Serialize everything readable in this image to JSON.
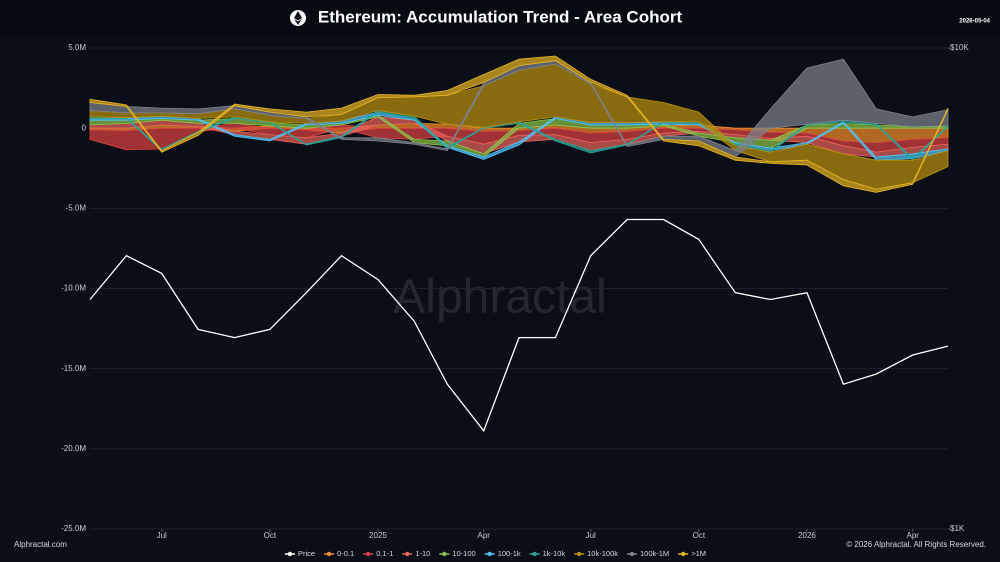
{
  "chart_data": {
    "type": "area",
    "title": "Ethereum: Accumulation Trend - Area Cohort",
    "date": "2026-05-04",
    "watermark": "Alphractal",
    "source": "Alphractal.com",
    "copyright": "© 2026 Alphractal. All Rights Reserved.",
    "x": [
      "2024-05",
      "2024-06",
      "2024-07",
      "2024-08",
      "2024-09",
      "2024-10",
      "2024-11",
      "2024-12",
      "2025-01",
      "2025-02",
      "2025-03",
      "2025-04",
      "2025-05",
      "2025-06",
      "2025-07",
      "2025-08",
      "2025-09",
      "2025-10",
      "2025-11",
      "2025-12",
      "2026-01",
      "2026-02",
      "2026-03",
      "2026-04",
      "2026-05"
    ],
    "xlim": [
      "2024-05",
      "2026-05"
    ],
    "xticks": [
      {
        "value": "2024-07",
        "label": "Jul"
      },
      {
        "value": "2024-10",
        "label": "Oct"
      },
      {
        "value": "2025-01",
        "label": "2025"
      },
      {
        "value": "2025-04",
        "label": "Apr"
      },
      {
        "value": "2025-07",
        "label": "Jul"
      },
      {
        "value": "2025-10",
        "label": "Oct"
      },
      {
        "value": "2026-01",
        "label": "2026"
      },
      {
        "value": "2026-04",
        "label": "Apr"
      }
    ],
    "ylim": [
      -25000000,
      5000000
    ],
    "yticks": [
      {
        "value": 5000000,
        "label": "5.0M"
      },
      0,
      {
        "value": -5000000,
        "label": "-5.0M"
      },
      {
        "value": -10000000,
        "label": "-10.0M"
      },
      {
        "value": -15000000,
        "label": "-15.0M"
      },
      {
        "value": -20000000,
        "label": "-20.0M"
      },
      {
        "value": -25000000,
        "label": "-25.0M"
      }
    ],
    "y2lim": [
      1000,
      10000
    ],
    "y2scale": "log",
    "y2ticks": [
      {
        "value": 10000,
        "label": "$10K"
      },
      {
        "value": 1000,
        "label": "$1K"
      }
    ],
    "grid": true,
    "legend": "bottom",
    "series": [
      {
        "name": "Price",
        "color": "#ffffff",
        "axis": "y2",
        "values": [
          3000,
          3700,
          3400,
          2600,
          2500,
          2600,
          3100,
          3700,
          3300,
          2700,
          2000,
          1600,
          2500,
          2500,
          3700,
          4400,
          4400,
          4000,
          3100,
          3000,
          3100,
          2000,
          2100,
          2300,
          2400
        ]
      },
      {
        "name": "0-0.1",
        "color": "#f28c28",
        "values": [
          -100000,
          -150000,
          200000,
          100000,
          -200000,
          150000,
          -100000,
          -300000,
          200000,
          300000,
          250000,
          -200000,
          -150000,
          200000,
          -300000,
          -200000,
          150000,
          200000,
          -100000,
          -250000,
          -300000,
          -800000,
          -900000,
          -700000,
          -600000
        ]
      },
      {
        "name": "0.1-1",
        "color": "#d94040",
        "values": [
          -600000,
          -1200000,
          -1300000,
          -200000,
          300000,
          -400000,
          -500000,
          200000,
          -600000,
          -700000,
          -500000,
          -800000,
          -300000,
          -400000,
          -600000,
          -500000,
          -300000,
          -200000,
          -300000,
          -400000,
          -200000,
          -300000,
          -600000,
          -500000,
          -400000
        ]
      },
      {
        "name": "1-10",
        "color": "#e8625a",
        "values": [
          200000,
          300000,
          300000,
          200000,
          -200000,
          -300000,
          -400000,
          -200000,
          500000,
          200000,
          -300000,
          -600000,
          -400000,
          -300000,
          -500000,
          -300000,
          -200000,
          -100000,
          -200000,
          -100000,
          -400000,
          -500000,
          -300000,
          -400000,
          -300000
        ]
      },
      {
        "name": "10-100",
        "color": "#8bc34a",
        "values": [
          300000,
          200000,
          100000,
          200000,
          300000,
          200000,
          200000,
          100000,
          100000,
          -200000,
          -300000,
          -200000,
          300000,
          400000,
          200000,
          200000,
          100000,
          -200000,
          -300000,
          -500000,
          200000,
          300000,
          200000,
          100000,
          100000
        ]
      },
      {
        "name": "100-1k",
        "color": "#4fc3f7",
        "values": [
          100000,
          100000,
          150000,
          100000,
          -100000,
          -100000,
          100000,
          150000,
          200000,
          100000,
          -100000,
          -150000,
          -200000,
          100000,
          150000,
          150000,
          100000,
          100000,
          -100000,
          -150000,
          -100000,
          100000,
          -200000,
          -300000,
          -100000
        ]
      },
      {
        "name": "1k-10k",
        "color": "#26a69a",
        "values": [
          100000,
          50000,
          -100000,
          -50000,
          100000,
          50000,
          -50000,
          -100000,
          100000,
          150000,
          -100000,
          50000,
          100000,
          -100000,
          -150000,
          -50000,
          50000,
          100000,
          -100000,
          -100000,
          50000,
          100000,
          100000,
          -100000,
          50000
        ]
      },
      {
        "name": "10k-100k",
        "color": "#b8900b",
        "values": [
          400000,
          300000,
          200000,
          300000,
          500000,
          400000,
          300000,
          400000,
          800000,
          1200000,
          1800000,
          2600000,
          3200000,
          3300000,
          2400000,
          1600000,
          1200000,
          600000,
          -300000,
          -600000,
          -1000000,
          -1600000,
          -1800000,
          -1400000,
          -1000000
        ]
      },
      {
        "name": "100k-1M",
        "color": "#7d828c",
        "values": [
          500000,
          400000,
          300000,
          300000,
          200000,
          200000,
          100000,
          -100000,
          -200000,
          -100000,
          -100000,
          200000,
          300000,
          200000,
          100000,
          -100000,
          -200000,
          -300000,
          -400000,
          1200000,
          3500000,
          3800000,
          900000,
          600000,
          1000000
        ]
      },
      {
        "name": ">1M",
        "color": "#e6b422",
        "values": [
          200000,
          100000,
          -100000,
          -200000,
          100000,
          200000,
          300000,
          400000,
          200000,
          100000,
          300000,
          500000,
          400000,
          300000,
          200000,
          100000,
          -100000,
          -300000,
          -200000,
          -100000,
          -300000,
          -400000,
          -200000,
          -100000,
          100000
        ]
      }
    ]
  }
}
